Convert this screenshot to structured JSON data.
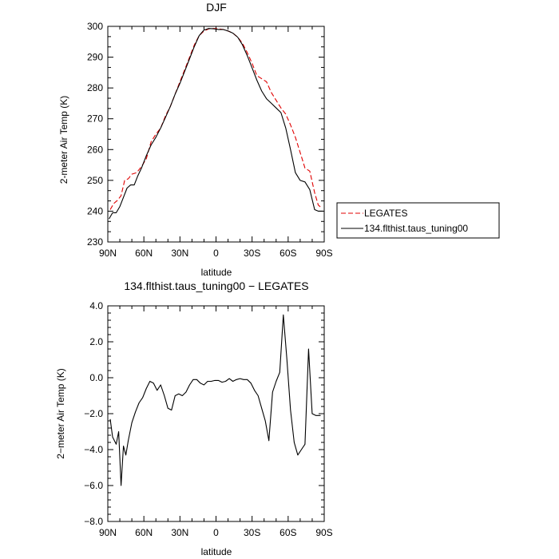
{
  "chart_data": [
    {
      "type": "line",
      "title": "DJF",
      "xlabel": "latitude",
      "ylabel": "2-meter Air Temp (K)",
      "xlim": [
        90,
        -90
      ],
      "ylim": [
        230,
        300
      ],
      "x_ticks": [
        90,
        60,
        30,
        0,
        -30,
        -60,
        -90
      ],
      "x_tick_labels": [
        "90N",
        "60N",
        "30N",
        "0",
        "30S",
        "60S",
        "90S"
      ],
      "y_ticks": [
        230,
        240,
        250,
        260,
        270,
        280,
        290,
        300
      ],
      "y_tick_labels": [
        "230",
        "240",
        "250",
        "260",
        "270",
        "280",
        "290",
        "300"
      ],
      "legend": {
        "placement": "right",
        "entries": [
          "LEGATES",
          "134.flthist.taus_tuning00"
        ]
      },
      "series": [
        {
          "name": "LEGATES",
          "color": "#e00000",
          "dash": "dashed",
          "x": [
            88,
            85,
            82,
            79,
            76,
            73,
            70,
            66,
            62,
            58,
            54,
            50,
            46,
            42,
            38,
            34,
            30,
            26,
            22,
            18,
            14,
            10,
            6,
            2,
            -2,
            -6,
            -10,
            -14,
            -18,
            -22,
            -26,
            -30,
            -34,
            -38,
            -42,
            -46,
            -50,
            -54,
            -58,
            -62,
            -66,
            -70,
            -74,
            -78,
            -82,
            -85,
            -88
          ],
          "y": [
            240.5,
            242.5,
            243.5,
            245,
            250,
            250.5,
            252,
            252.5,
            254.5,
            257,
            262.5,
            265,
            267,
            271,
            274,
            278,
            282,
            286,
            290,
            294,
            297,
            298.5,
            299.2,
            299.3,
            299.2,
            299,
            298.5,
            297.8,
            296.5,
            294.5,
            291.5,
            288,
            284,
            283,
            282,
            278.5,
            276,
            273.5,
            271.5,
            268,
            264,
            259,
            254,
            253,
            246,
            242,
            241
          ]
        },
        {
          "name": "134.flthist.taus_tuning00",
          "color": "#000000",
          "dash": "solid",
          "x": [
            89,
            86,
            83,
            80,
            77,
            74,
            71,
            68,
            65,
            62,
            58,
            54,
            50,
            46,
            42,
            38,
            34,
            30,
            26,
            22,
            18,
            14,
            10,
            6,
            2,
            -2,
            -6,
            -10,
            -14,
            -18,
            -22,
            -26,
            -30,
            -34,
            -38,
            -42,
            -46,
            -50,
            -54,
            -58,
            -62,
            -66,
            -70,
            -74,
            -78,
            -82,
            -85,
            -87,
            -89
          ],
          "y": [
            237.5,
            239.5,
            239.5,
            241.5,
            244.5,
            247.5,
            248.5,
            248.5,
            251.5,
            254,
            258,
            261.5,
            264,
            267,
            270.5,
            274,
            278,
            281.5,
            285.5,
            289.5,
            293.5,
            297,
            298.8,
            299.3,
            299.2,
            299,
            299,
            298.5,
            297.8,
            296.5,
            294,
            290.5,
            286.5,
            282.5,
            279,
            276.5,
            275,
            273.5,
            272,
            267,
            260,
            252.5,
            250,
            249.5,
            247,
            240.5,
            240,
            240,
            240
          ]
        }
      ]
    },
    {
      "type": "line",
      "title": "134.flthist.taus_tuning00 − LEGATES",
      "xlabel": "latitude",
      "ylabel": "2−meter Air Temp (K)",
      "xlim": [
        90,
        -90
      ],
      "ylim": [
        -8,
        4
      ],
      "x_ticks": [
        90,
        60,
        30,
        0,
        -30,
        -60,
        -90
      ],
      "x_tick_labels": [
        "90N",
        "60N",
        "30N",
        "0",
        "30S",
        "60S",
        "90S"
      ],
      "y_ticks": [
        -8,
        -6,
        -4,
        -2,
        0,
        2,
        4
      ],
      "y_tick_labels": [
        "−8.0",
        "−6.0",
        "−4.0",
        "−2.0",
        "0.0",
        "2.0",
        "4.0"
      ],
      "series": [
        {
          "name": "",
          "color": "#000000",
          "dash": "solid",
          "x": [
            88,
            86,
            83,
            81,
            79,
            77,
            75,
            73,
            70,
            67,
            64,
            61,
            58,
            55,
            52,
            49,
            46,
            43,
            40,
            37,
            34,
            31,
            28,
            25,
            22,
            19,
            16,
            13,
            10,
            7,
            4,
            1,
            -2,
            -5,
            -8,
            -11,
            -14,
            -17,
            -20,
            -23,
            -26,
            -29,
            -32,
            -35,
            -38,
            -41,
            -44,
            -47,
            -50,
            -53,
            -56,
            -59,
            -62,
            -65,
            -68,
            -71,
            -74,
            -77,
            -80,
            -83,
            -85,
            -87
          ],
          "y": [
            -2.3,
            -3.3,
            -3.7,
            -3.0,
            -6.0,
            -3.8,
            -4.3,
            -3.5,
            -2.5,
            -1.9,
            -1.4,
            -1.1,
            -0.6,
            -0.2,
            -0.3,
            -0.7,
            -0.4,
            -1.0,
            -1.7,
            -1.8,
            -1.0,
            -0.9,
            -1.0,
            -0.8,
            -0.4,
            -0.1,
            -0.1,
            -0.3,
            -0.4,
            -0.2,
            -0.2,
            -0.15,
            -0.15,
            -0.25,
            -0.2,
            -0.05,
            -0.2,
            -0.1,
            -0.05,
            -0.1,
            -0.1,
            -0.3,
            -0.7,
            -1.0,
            -1.7,
            -2.4,
            -3.5,
            -0.8,
            -0.2,
            0.3,
            3.5,
            1.0,
            -1.8,
            -3.6,
            -4.3,
            -4.0,
            -3.7,
            1.6,
            -2.0,
            -2.1,
            -2.1,
            -2.1
          ]
        }
      ]
    }
  ]
}
